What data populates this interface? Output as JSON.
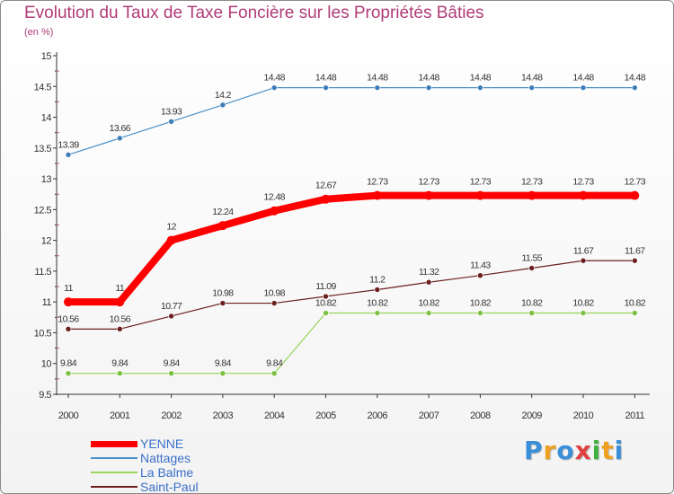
{
  "chart_data": {
    "type": "line",
    "title": "Evolution du Taux de Taxe Foncière sur les Propriétés Bâties",
    "unit_label": "(en %)",
    "xlabel": "",
    "ylabel": "",
    "x": [
      "2000",
      "2001",
      "2002",
      "2003",
      "2004",
      "2005",
      "2006",
      "2007",
      "2008",
      "2009",
      "2010",
      "2011"
    ],
    "ylim": [
      9.5,
      15
    ],
    "yticks": [
      "9.5",
      "10",
      "10.5",
      "11",
      "11.5",
      "12",
      "12.5",
      "13",
      "13.5",
      "14",
      "14.5",
      "15"
    ],
    "grid": false,
    "legend_position": "bottom-left",
    "series": [
      {
        "name": "Nattages",
        "color": "#4a90c8",
        "point_color": "#3c7db8",
        "line_width": 1.2,
        "values": [
          13.39,
          13.66,
          13.93,
          14.2,
          14.48,
          14.48,
          14.48,
          14.48,
          14.48,
          14.48,
          14.48,
          14.48
        ],
        "labels": [
          "13.39",
          "13.66",
          "13.93",
          "14.2",
          "14.48",
          "14.48",
          "14.48",
          "14.48",
          "14.48",
          "14.48",
          "14.48",
          "14.48"
        ]
      },
      {
        "name": "YENNE",
        "color": "#ff0000",
        "point_color": "#ff0000",
        "line_width": 8,
        "values": [
          11,
          11,
          12,
          12.24,
          12.48,
          12.67,
          12.73,
          12.73,
          12.73,
          12.73,
          12.73,
          12.73
        ],
        "labels": [
          "11",
          "11",
          "12",
          "12.24",
          "12.48",
          "12.67",
          "12.73",
          "12.73",
          "12.73",
          "12.73",
          "12.73",
          "12.73"
        ]
      },
      {
        "name": "Saint-Paul",
        "color": "#6b1f1f",
        "point_color": "#6b1f1f",
        "line_width": 1.2,
        "values": [
          10.56,
          10.56,
          10.77,
          10.98,
          10.98,
          11.09,
          11.2,
          11.32,
          11.43,
          11.55,
          11.67,
          11.67
        ],
        "labels": [
          "10.56",
          "10.56",
          "10.77",
          "10.98",
          "10.98",
          "11.09",
          "11.2",
          "11.32",
          "11.43",
          "11.55",
          "11.67",
          "11.67"
        ]
      },
      {
        "name": "La Balme",
        "color": "#9ad45a",
        "point_color": "#7cc040",
        "line_width": 1.2,
        "values": [
          9.84,
          9.84,
          9.84,
          9.84,
          9.84,
          10.82,
          10.82,
          10.82,
          10.82,
          10.82,
          10.82,
          10.82
        ],
        "labels": [
          "9.84",
          "9.84",
          "9.84",
          "9.84",
          "9.84",
          "10.82",
          "10.82",
          "10.82",
          "10.82",
          "10.82",
          "10.82",
          "10.82"
        ]
      }
    ],
    "legend": [
      {
        "name": "YENNE",
        "color": "#ff0000",
        "thick": true
      },
      {
        "name": "Nattages",
        "color": "#4a90c8",
        "thick": false
      },
      {
        "name": "La Balme",
        "color": "#9ad45a",
        "thick": false
      },
      {
        "name": "Saint-Paul",
        "color": "#6b1f1f",
        "thick": false
      }
    ]
  },
  "logo": {
    "letters": [
      "P",
      "r",
      "o",
      "x",
      "i",
      "t",
      "i"
    ],
    "colors": [
      "#3a8fd8",
      "#f0a020",
      "#3a8fd8",
      "#e04040",
      "#40b040",
      "#f0a020",
      "#3a8fd8"
    ]
  }
}
